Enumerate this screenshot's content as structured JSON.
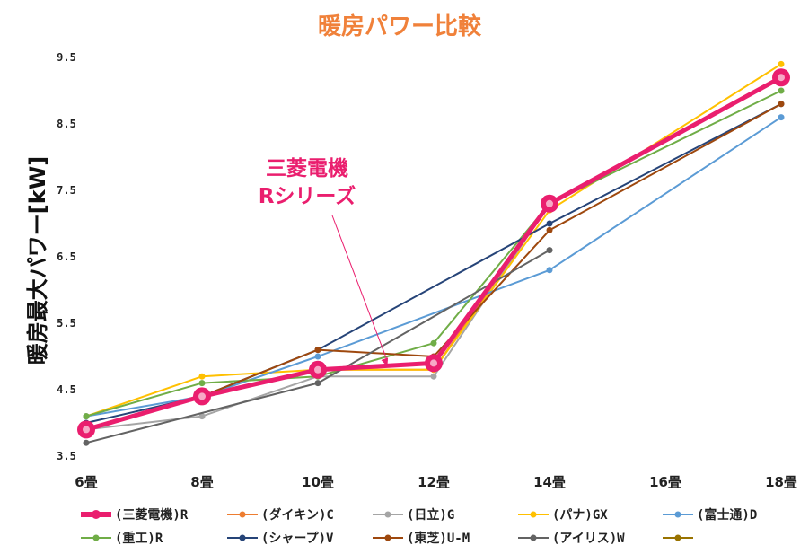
{
  "chart_data": {
    "type": "line",
    "title": "暖房パワー比較",
    "ylabel": "暖房最大パワー[kW]",
    "xlabel": "",
    "x": [
      6,
      8,
      10,
      12,
      14,
      16,
      18
    ],
    "x_tick_labels": [
      "6畳",
      "8畳",
      "10畳",
      "12畳",
      "14畳",
      "16畳",
      "18畳"
    ],
    "ylim": [
      3.5,
      9.5
    ],
    "y_ticks": [
      3.5,
      4.5,
      5.5,
      6.5,
      7.5,
      8.5,
      9.5
    ],
    "y_tick_labels": [
      "3.5",
      "4.5",
      "5.5",
      "6.5",
      "7.5",
      "8.5",
      "9.5"
    ],
    "grid": false,
    "legend_position": "bottom",
    "annotation": {
      "lines": [
        "三菱電機",
        "Rシリーズ"
      ],
      "points_to": {
        "x": 11.2,
        "y": 4.85
      }
    },
    "series": [
      {
        "name": "(三菱電機)R",
        "color": "#ea1e6e",
        "highlight": true,
        "values": [
          3.9,
          4.4,
          4.8,
          4.9,
          7.3,
          null,
          9.2
        ]
      },
      {
        "name": "(ダイキン)C",
        "color": "#ed7d31",
        "values": [
          3.9,
          4.4,
          4.8,
          4.8,
          7.3,
          null,
          9.2
        ]
      },
      {
        "name": "(日立)G",
        "color": "#a5a5a5",
        "values": [
          3.9,
          4.1,
          4.7,
          4.7,
          7.3,
          null,
          9.2
        ]
      },
      {
        "name": "(パナ)GX",
        "color": "#ffc000",
        "values": [
          4.1,
          4.7,
          4.8,
          4.8,
          7.2,
          null,
          9.4
        ]
      },
      {
        "name": "(富士通)D",
        "color": "#5b9bd5",
        "values": [
          4.1,
          4.4,
          5.0,
          null,
          6.3,
          null,
          8.6
        ]
      },
      {
        "name": "(重工)R",
        "color": "#70ad47",
        "values": [
          4.1,
          4.6,
          4.7,
          5.2,
          7.3,
          null,
          9.0
        ]
      },
      {
        "name": "(シャープ)V",
        "color": "#264478",
        "values": [
          4.0,
          4.4,
          5.1,
          null,
          7.0,
          null,
          8.8
        ]
      },
      {
        "name": "(東芝)U-M",
        "color": "#9e480e",
        "values": [
          3.9,
          4.4,
          5.1,
          5.0,
          6.9,
          null,
          8.8
        ]
      },
      {
        "name": "(アイリス)W",
        "color": "#636363",
        "values": [
          3.7,
          null,
          4.6,
          null,
          6.6,
          null,
          null
        ]
      },
      {
        "name": "",
        "color": "#997300",
        "values": [
          null,
          null,
          null,
          null,
          null,
          null,
          null
        ]
      }
    ]
  }
}
